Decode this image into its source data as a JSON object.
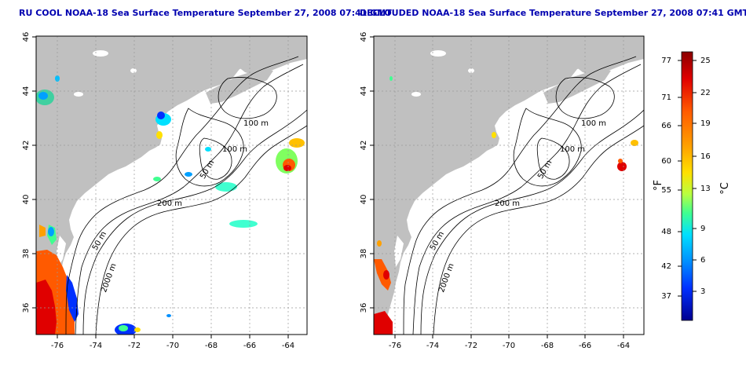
{
  "maps": [
    {
      "title": "RU COOL NOAA-18 Sea Surface Temperature September 27, 2008 07:41 GMT",
      "x_ticks": [
        "-76",
        "-74",
        "-72",
        "-70",
        "-68",
        "-66",
        "-64"
      ],
      "y_ticks": [
        "46",
        "44",
        "42",
        "40",
        "38",
        "36"
      ],
      "contour_labels": [
        "100 m",
        "100 m",
        "50 m",
        "200 m",
        "50 m",
        "2000 m"
      ]
    },
    {
      "title": "DECLOUDED NOAA-18 Sea Surface Temperature September 27, 2008 07:41 GMT",
      "x_ticks": [
        "-76",
        "-74",
        "-72",
        "-70",
        "-68",
        "-66",
        "-64"
      ],
      "y_ticks": [
        "46",
        "44",
        "42",
        "40",
        "38",
        "36"
      ],
      "contour_labels": [
        "100 m",
        "100 m",
        "50 m",
        "200 m",
        "50 m",
        "2000 m"
      ]
    }
  ],
  "colorbar": {
    "f_label": "°F",
    "c_label": "°C",
    "f_ticks": [
      "77",
      "71",
      "66",
      "60",
      "55",
      "48",
      "42",
      "37"
    ],
    "c_ticks": [
      "25",
      "22",
      "19",
      "16",
      "13",
      "9",
      "6",
      "3"
    ],
    "colors": [
      "#8b0000",
      "#e00000",
      "#ff5a00",
      "#ffa000",
      "#ffe000",
      "#b8ff40",
      "#40ff90",
      "#00e0ff",
      "#0090ff",
      "#0030ff",
      "#000090"
    ]
  },
  "colors": {
    "land": "#c0c0c0",
    "ocean": "#ffffff",
    "title": "#0000b0"
  }
}
